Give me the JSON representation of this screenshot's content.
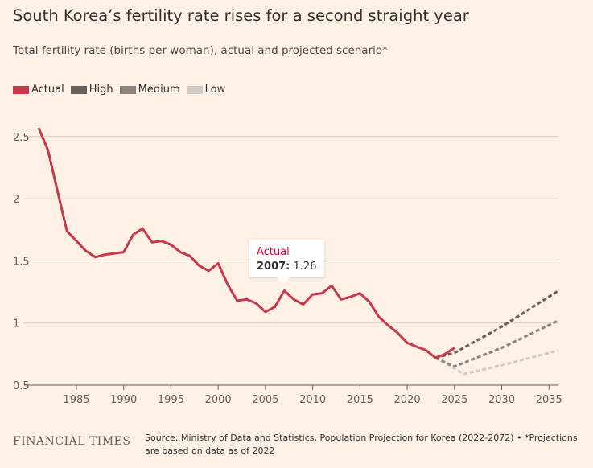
{
  "header": {
    "title": "South Korea’s fertility rate rises for a second straight year",
    "subtitle": "Total fertility rate (births per woman), actual and projected scenario*"
  },
  "legend": [
    {
      "label": "Actual",
      "color": "#C8374A"
    },
    {
      "label": "High",
      "color": "#66605c"
    },
    {
      "label": "Medium",
      "color": "#8a8380"
    },
    {
      "label": "Low",
      "color": "#cfcac6"
    }
  ],
  "tooltip": {
    "series": "Actual",
    "year": "2007:",
    "value": "1.26"
  },
  "footer": {
    "logo": "FINANCIAL TIMES",
    "source": "Source: Ministry of Data and Statistics, Population Projection for Korea (2022-2072) • *Projections are based on data as of 2022"
  },
  "chart_data": {
    "type": "line",
    "title": "South Korea’s fertility rate rises for a second straight year",
    "ylabel": "Total fertility rate (births per woman)",
    "xlim": [
      1981,
      2036
    ],
    "ylim": [
      0.5,
      2.6
    ],
    "xticks": [
      1985,
      1990,
      1995,
      2000,
      2005,
      2010,
      2015,
      2020,
      2025,
      2030,
      2035
    ],
    "yticks": [
      0.5,
      1,
      1.5,
      2,
      2.5
    ],
    "ytick_labels": [
      "0.5",
      "1",
      "1.5",
      "2",
      "2.5"
    ],
    "grid": "horizontal",
    "legend_position": "top-left",
    "series": [
      {
        "name": "Actual",
        "style": "solid",
        "x": [
          1981,
          1982,
          1983,
          1984,
          1985,
          1986,
          1987,
          1988,
          1989,
          1990,
          1991,
          1992,
          1993,
          1994,
          1995,
          1996,
          1997,
          1998,
          1999,
          2000,
          2001,
          2002,
          2003,
          2004,
          2005,
          2006,
          2007,
          2008,
          2009,
          2010,
          2011,
          2012,
          2013,
          2014,
          2015,
          2016,
          2017,
          2018,
          2019,
          2020,
          2021,
          2022,
          2023,
          2024,
          2025
        ],
        "y": [
          2.57,
          2.39,
          2.06,
          1.74,
          1.66,
          1.58,
          1.53,
          1.55,
          1.56,
          1.57,
          1.71,
          1.76,
          1.65,
          1.66,
          1.63,
          1.57,
          1.54,
          1.46,
          1.42,
          1.48,
          1.31,
          1.18,
          1.19,
          1.16,
          1.09,
          1.13,
          1.26,
          1.19,
          1.15,
          1.23,
          1.24,
          1.3,
          1.19,
          1.21,
          1.24,
          1.17,
          1.05,
          0.98,
          0.92,
          0.84,
          0.81,
          0.78,
          0.72,
          0.75,
          0.8
        ]
      },
      {
        "name": "High",
        "style": "dashed",
        "x": [
          2023,
          2025,
          2030,
          2036
        ],
        "y": [
          0.72,
          0.76,
          0.97,
          1.26
        ]
      },
      {
        "name": "Medium",
        "style": "dashed",
        "x": [
          2023,
          2025,
          2030,
          2036
        ],
        "y": [
          0.72,
          0.65,
          0.8,
          1.02
        ]
      },
      {
        "name": "Low",
        "style": "dashed",
        "x": [
          2023,
          2026,
          2030,
          2036
        ],
        "y": [
          0.72,
          0.59,
          0.66,
          0.78
        ]
      }
    ],
    "annotations": [
      {
        "text": "Actual 2007: 1.26",
        "x": 2007,
        "y": 1.26
      }
    ]
  }
}
